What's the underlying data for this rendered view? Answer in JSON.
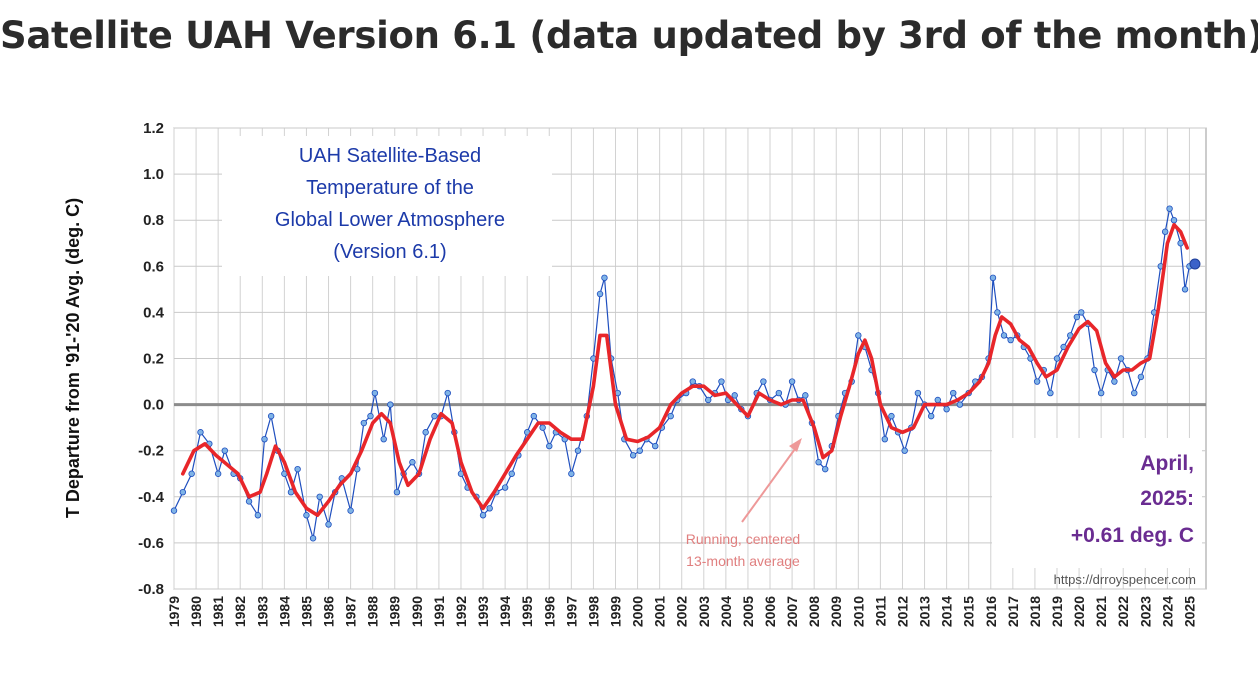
{
  "page": {
    "heading": "Satellite UAH Version 6.1 (data updated by 3rd of the month)"
  },
  "chart_data": {
    "type": "line",
    "title_lines": [
      "UAH Satellite-Based",
      "Temperature of the",
      "Global Lower Atmosphere",
      "(Version 6.1)"
    ],
    "ylabel": "T Departure from '91-'20 Avg. (deg. C)",
    "xlabel": "",
    "ylim": [
      -0.8,
      1.2
    ],
    "yticks": [
      -0.8,
      -0.6,
      -0.4,
      -0.2,
      0.0,
      0.2,
      0.4,
      0.6,
      0.8,
      1.0,
      1.2
    ],
    "ytick_labels": [
      "-0.8",
      "-0.6",
      "-0.4",
      "-0.2",
      "0.0",
      "0.2",
      "0.4",
      "0.6",
      "0.8",
      "1.0",
      "1.2"
    ],
    "xlim": [
      1979.0,
      2025.75
    ],
    "xtick_labels": [
      "1979",
      "1980",
      "1981",
      "1982",
      "1983",
      "1984",
      "1985",
      "1986",
      "1987",
      "1988",
      "1989",
      "1990",
      "1991",
      "1992",
      "1993",
      "1994",
      "1995",
      "1996",
      "1997",
      "1998",
      "1999",
      "2000",
      "2001",
      "2002",
      "2003",
      "2004",
      "2005",
      "2006",
      "2007",
      "2008",
      "2009",
      "2010",
      "2011",
      "2012",
      "2013",
      "2014",
      "2015",
      "2016",
      "2017",
      "2018",
      "2019",
      "2020",
      "2021",
      "2022",
      "2023",
      "2024",
      "2025"
    ],
    "grid": true,
    "series": [
      {
        "role": "monthly",
        "color": "#1f4fbf",
        "marker_fill": "#7fb3e6",
        "x": [
          1979.0,
          1979.4,
          1979.8,
          1980.2,
          1980.6,
          1981.0,
          1981.3,
          1981.7,
          1982.0,
          1982.4,
          1982.8,
          1983.1,
          1983.4,
          1983.7,
          1984.0,
          1984.3,
          1984.6,
          1985.0,
          1985.3,
          1985.6,
          1986.0,
          1986.3,
          1986.6,
          1987.0,
          1987.3,
          1987.6,
          1987.9,
          1988.1,
          1988.5,
          1988.8,
          1989.1,
          1989.4,
          1989.8,
          1990.1,
          1990.4,
          1990.8,
          1991.1,
          1991.4,
          1991.7,
          1992.0,
          1992.3,
          1992.7,
          1993.0,
          1993.3,
          1993.6,
          1994.0,
          1994.3,
          1994.6,
          1995.0,
          1995.3,
          1995.7,
          1996.0,
          1996.3,
          1996.7,
          1997.0,
          1997.3,
          1997.7,
          1998.0,
          1998.3,
          1998.5,
          1998.8,
          1999.1,
          1999.4,
          1999.8,
          2000.1,
          2000.4,
          2000.8,
          2001.1,
          2001.5,
          2001.8,
          2002.2,
          2002.5,
          2002.8,
          2003.2,
          2003.5,
          2003.8,
          2004.1,
          2004.4,
          2004.7,
          2005.0,
          2005.4,
          2005.7,
          2006.0,
          2006.4,
          2006.7,
          2007.0,
          2007.3,
          2007.6,
          2007.9,
          2008.2,
          2008.5,
          2008.8,
          2009.1,
          2009.4,
          2009.7,
          2010.0,
          2010.3,
          2010.6,
          2010.9,
          2011.2,
          2011.5,
          2011.8,
          2012.1,
          2012.4,
          2012.7,
          2013.0,
          2013.3,
          2013.6,
          2014.0,
          2014.3,
          2014.6,
          2015.0,
          2015.3,
          2015.6,
          2015.9,
          2016.1,
          2016.3,
          2016.6,
          2016.9,
          2017.2,
          2017.5,
          2017.8,
          2018.1,
          2018.4,
          2018.7,
          2019.0,
          2019.3,
          2019.6,
          2019.9,
          2020.1,
          2020.4,
          2020.7,
          2021.0,
          2021.3,
          2021.6,
          2021.9,
          2022.2,
          2022.5,
          2022.8,
          2023.1,
          2023.4,
          2023.7,
          2023.9,
          2024.1,
          2024.3,
          2024.6,
          2024.8,
          2025.0,
          2025.25
        ],
        "values": [
          -0.46,
          -0.38,
          -0.3,
          -0.12,
          -0.17,
          -0.3,
          -0.2,
          -0.3,
          -0.32,
          -0.42,
          -0.48,
          -0.15,
          -0.05,
          -0.2,
          -0.3,
          -0.38,
          -0.28,
          -0.48,
          -0.58,
          -0.4,
          -0.52,
          -0.38,
          -0.32,
          -0.46,
          -0.28,
          -0.08,
          -0.05,
          0.05,
          -0.15,
          0.0,
          -0.38,
          -0.3,
          -0.25,
          -0.3,
          -0.12,
          -0.05,
          -0.05,
          0.05,
          -0.12,
          -0.3,
          -0.36,
          -0.4,
          -0.48,
          -0.45,
          -0.38,
          -0.36,
          -0.3,
          -0.22,
          -0.12,
          -0.05,
          -0.1,
          -0.18,
          -0.12,
          -0.15,
          -0.3,
          -0.2,
          -0.05,
          0.2,
          0.48,
          0.55,
          0.2,
          0.05,
          -0.15,
          -0.22,
          -0.2,
          -0.15,
          -0.18,
          -0.1,
          -0.05,
          0.02,
          0.05,
          0.1,
          0.08,
          0.02,
          0.05,
          0.1,
          0.02,
          0.04,
          -0.02,
          -0.05,
          0.05,
          0.1,
          0.02,
          0.05,
          0.0,
          0.1,
          0.02,
          0.04,
          -0.08,
          -0.25,
          -0.28,
          -0.18,
          -0.05,
          0.05,
          0.1,
          0.3,
          0.25,
          0.15,
          0.05,
          -0.15,
          -0.05,
          -0.12,
          -0.2,
          -0.1,
          0.05,
          0.0,
          -0.05,
          0.02,
          -0.02,
          0.05,
          0.0,
          0.05,
          0.1,
          0.12,
          0.2,
          0.55,
          0.4,
          0.3,
          0.28,
          0.3,
          0.25,
          0.2,
          0.1,
          0.15,
          0.05,
          0.2,
          0.25,
          0.3,
          0.38,
          0.4,
          0.35,
          0.15,
          0.05,
          0.15,
          0.1,
          0.2,
          0.15,
          0.05,
          0.12,
          0.2,
          0.4,
          0.6,
          0.75,
          0.85,
          0.8,
          0.7,
          0.5,
          0.6,
          0.61
        ]
      },
      {
        "role": "running_13_month_average",
        "color": "#e8262a",
        "x": [
          1979.4,
          1979.9,
          1980.4,
          1980.9,
          1981.4,
          1981.9,
          1982.4,
          1982.9,
          1983.2,
          1983.6,
          1984.0,
          1984.5,
          1985.0,
          1985.5,
          1986.0,
          1986.5,
          1987.0,
          1987.5,
          1988.0,
          1988.4,
          1988.8,
          1989.2,
          1989.6,
          1990.1,
          1990.6,
          1991.1,
          1991.6,
          1992.0,
          1992.5,
          1993.0,
          1993.5,
          1994.0,
          1994.5,
          1995.0,
          1995.5,
          1996.0,
          1996.5,
          1997.0,
          1997.5,
          1998.0,
          1998.3,
          1998.6,
          1999.0,
          1999.5,
          2000.0,
          2000.5,
          2001.0,
          2001.5,
          2002.0,
          2002.5,
          2003.0,
          2003.5,
          2004.0,
          2004.5,
          2005.0,
          2005.5,
          2006.0,
          2006.5,
          2007.0,
          2007.5,
          2008.0,
          2008.4,
          2008.8,
          2009.2,
          2009.6,
          2010.0,
          2010.3,
          2010.6,
          2011.0,
          2011.5,
          2012.0,
          2012.5,
          2013.0,
          2013.5,
          2014.0,
          2014.5,
          2015.0,
          2015.5,
          2015.9,
          2016.2,
          2016.5,
          2016.9,
          2017.3,
          2017.7,
          2018.1,
          2018.5,
          2019.0,
          2019.5,
          2020.0,
          2020.4,
          2020.8,
          2021.2,
          2021.6,
          2022.0,
          2022.4,
          2022.8,
          2023.2,
          2023.6,
          2024.0,
          2024.3,
          2024.6,
          2024.9
        ],
        "values": [
          -0.3,
          -0.2,
          -0.17,
          -0.22,
          -0.26,
          -0.3,
          -0.4,
          -0.38,
          -0.3,
          -0.18,
          -0.25,
          -0.38,
          -0.45,
          -0.48,
          -0.42,
          -0.35,
          -0.3,
          -0.2,
          -0.08,
          -0.04,
          -0.08,
          -0.25,
          -0.35,
          -0.3,
          -0.15,
          -0.04,
          -0.08,
          -0.25,
          -0.38,
          -0.45,
          -0.38,
          -0.3,
          -0.22,
          -0.15,
          -0.08,
          -0.08,
          -0.12,
          -0.15,
          -0.15,
          0.08,
          0.3,
          0.3,
          0.0,
          -0.15,
          -0.16,
          -0.14,
          -0.1,
          0.0,
          0.05,
          0.08,
          0.08,
          0.04,
          0.05,
          0.0,
          -0.05,
          0.05,
          0.02,
          0.0,
          0.02,
          0.02,
          -0.1,
          -0.23,
          -0.2,
          -0.05,
          0.08,
          0.22,
          0.28,
          0.2,
          0.0,
          -0.1,
          -0.12,
          -0.1,
          0.0,
          0.0,
          0.0,
          0.02,
          0.05,
          0.1,
          0.18,
          0.3,
          0.38,
          0.35,
          0.28,
          0.25,
          0.18,
          0.12,
          0.15,
          0.25,
          0.33,
          0.36,
          0.32,
          0.18,
          0.12,
          0.15,
          0.15,
          0.18,
          0.2,
          0.42,
          0.7,
          0.78,
          0.75,
          0.68
        ]
      }
    ],
    "annotations": {
      "running_average_lines": [
        "Running, centered",
        "13-month average"
      ],
      "callout_lines": [
        "April,",
        "2025:",
        "+0.61 deg. C"
      ],
      "source": "https://drroyspencer.com"
    }
  }
}
